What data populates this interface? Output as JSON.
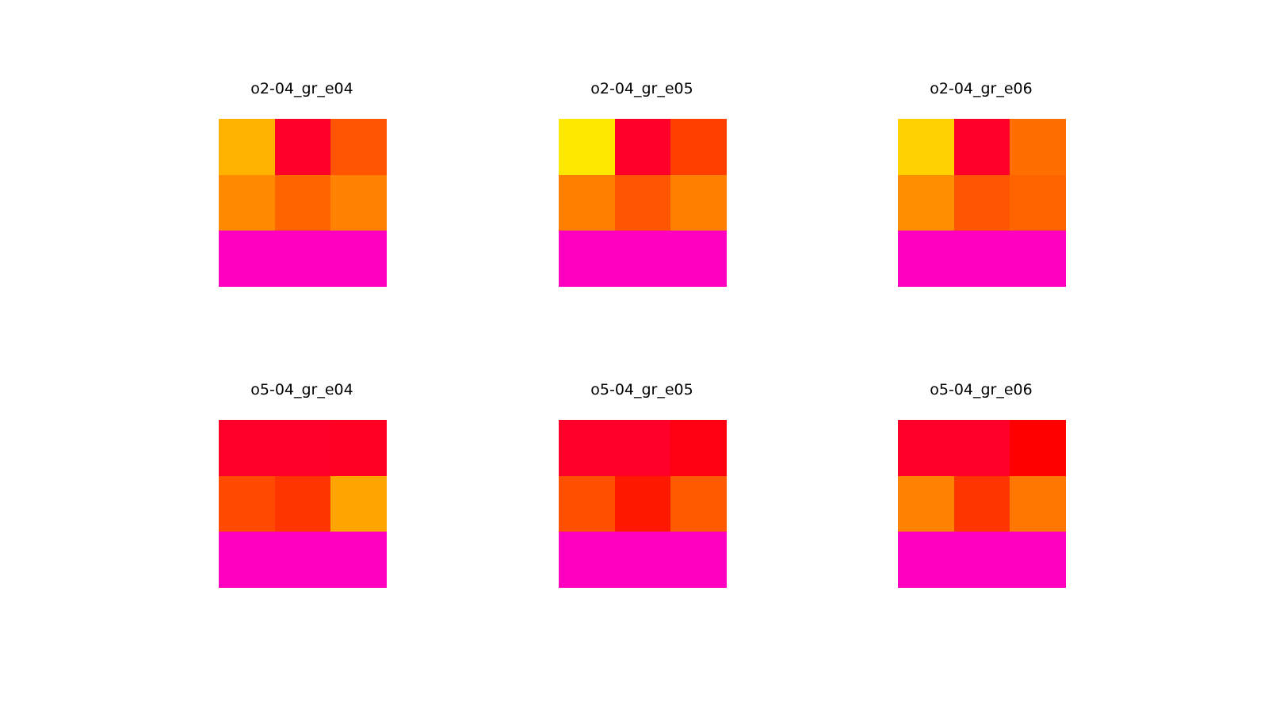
{
  "chart_data": [
    {
      "type": "heatmap",
      "title": "o2-04_gr_e04",
      "colors": [
        [
          "#ffb300",
          "#ff0029",
          "#ff5500"
        ],
        [
          "#ff8a00",
          "#ff6400",
          "#ff8300"
        ],
        [
          "#ff00c0",
          "#ff00c0",
          "#ff00c0"
        ]
      ]
    },
    {
      "type": "heatmap",
      "title": "o2-04_gr_e05",
      "colors": [
        [
          "#ffe800",
          "#ff0029",
          "#ff3f00"
        ],
        [
          "#ff7f00",
          "#ff5500",
          "#ff7f00"
        ],
        [
          "#ff00c0",
          "#ff00c0",
          "#ff00c0"
        ]
      ]
    },
    {
      "type": "heatmap",
      "title": "o2-04_gr_e06",
      "colors": [
        [
          "#ffd200",
          "#ff0029",
          "#ff6e00"
        ],
        [
          "#ff8f00",
          "#ff5500",
          "#ff6400"
        ],
        [
          "#ff00c0",
          "#ff00c0",
          "#ff00c0"
        ]
      ]
    },
    {
      "type": "heatmap",
      "title": "o5-04_gr_e04",
      "colors": [
        [
          "#ff0029",
          "#ff0029",
          "#ff0023"
        ],
        [
          "#ff4a00",
          "#ff3500",
          "#ffa500"
        ],
        [
          "#ff00c0",
          "#ff00c0",
          "#ff00c0"
        ]
      ]
    },
    {
      "type": "heatmap",
      "title": "o5-04_gr_e05",
      "colors": [
        [
          "#ff0029",
          "#ff0029",
          "#ff0010"
        ],
        [
          "#ff5000",
          "#ff1800",
          "#ff5a00"
        ],
        [
          "#ff00c0",
          "#ff00c0",
          "#ff00c0"
        ]
      ]
    },
    {
      "type": "heatmap",
      "title": "o5-04_gr_e06",
      "colors": [
        [
          "#ff0029",
          "#ff0029",
          "#ff0000"
        ],
        [
          "#ff8300",
          "#ff3500",
          "#ff7700"
        ],
        [
          "#ff00c0",
          "#ff00c0",
          "#ff00c0"
        ]
      ]
    }
  ]
}
